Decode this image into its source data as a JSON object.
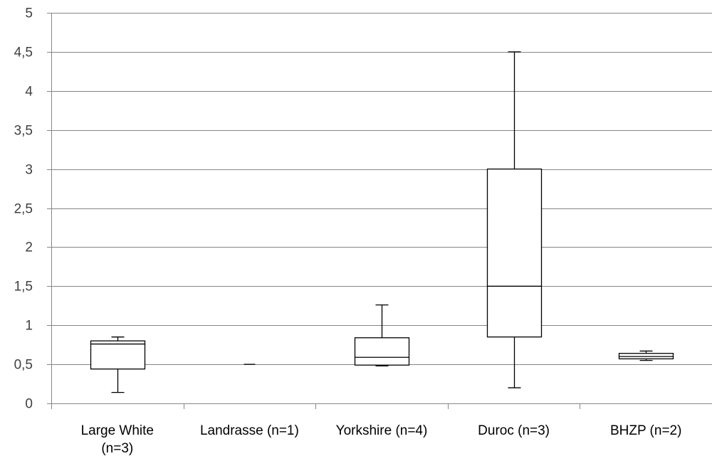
{
  "chart_data": {
    "type": "box",
    "title": "",
    "xlabel": "",
    "ylabel": "",
    "ylim": [
      0,
      5
    ],
    "y_ticks": [
      {
        "value": 0,
        "label": "0"
      },
      {
        "value": 0.5,
        "label": "0,5"
      },
      {
        "value": 1,
        "label": "1"
      },
      {
        "value": 1.5,
        "label": "1,5"
      },
      {
        "value": 2,
        "label": "2"
      },
      {
        "value": 2.5,
        "label": "2,5"
      },
      {
        "value": 3,
        "label": "3"
      },
      {
        "value": 3.5,
        "label": "3,5"
      },
      {
        "value": 4,
        "label": "4"
      },
      {
        "value": 4.5,
        "label": "4,5"
      },
      {
        "value": 5,
        "label": "5"
      }
    ],
    "grid": true,
    "legend": "none",
    "categories": [
      {
        "label_lines": [
          "Large White",
          "(n=3)"
        ],
        "min": 0.14,
        "q1": 0.44,
        "median": 0.76,
        "q3": 0.8,
        "max": 0.85
      },
      {
        "label_lines": [
          "Landrasse (n=1)"
        ],
        "min": 0.5,
        "q1": 0.5,
        "median": 0.5,
        "q3": 0.5,
        "max": 0.5
      },
      {
        "label_lines": [
          "Yorkshire (n=4)"
        ],
        "min": 0.48,
        "q1": 0.49,
        "median": 0.59,
        "q3": 0.84,
        "max": 1.26
      },
      {
        "label_lines": [
          "Duroc (n=3)"
        ],
        "min": 0.2,
        "q1": 0.85,
        "median": 1.5,
        "q3": 3.0,
        "max": 4.5
      },
      {
        "label_lines": [
          "BHZP (n=2)"
        ],
        "min": 0.55,
        "q1": 0.57,
        "median": 0.6,
        "q3": 0.64,
        "max": 0.67
      }
    ],
    "colors": {
      "box_stroke": "#000000",
      "box_fill": "#ffffff",
      "grid": "#868686",
      "axis": "#868686",
      "text": "#404040"
    }
  }
}
